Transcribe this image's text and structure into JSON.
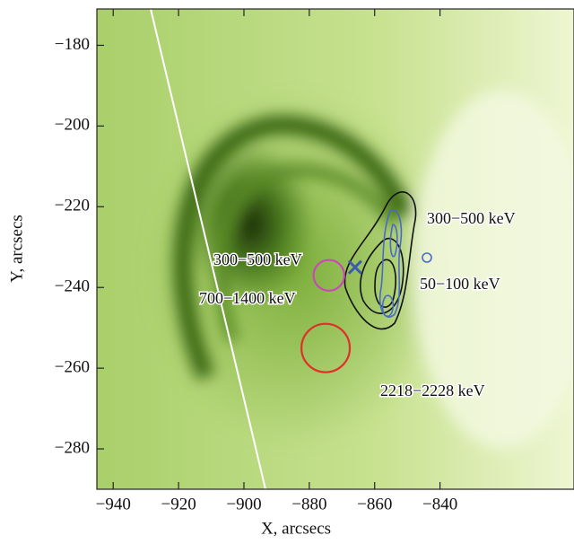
{
  "chart_data": {
    "type": "image",
    "xlabel": "X, arcsecs",
    "ylabel": "Y, arcsecs",
    "xlim": [
      -945,
      -799
    ],
    "ylim": [
      -290,
      -171
    ],
    "xticks": [
      {
        "value": -940,
        "label": "−940"
      },
      {
        "value": -920,
        "label": "−920"
      },
      {
        "value": -900,
        "label": "−900"
      },
      {
        "value": -880,
        "label": "−880"
      },
      {
        "value": -860,
        "label": "−860"
      },
      {
        "value": -840,
        "label": "−840"
      }
    ],
    "yticks": [
      {
        "value": -180,
        "label": "−180"
      },
      {
        "value": -200,
        "label": "−200"
      },
      {
        "value": -220,
        "label": "−220"
      },
      {
        "value": -240,
        "label": "−240"
      },
      {
        "value": -260,
        "label": "−260"
      },
      {
        "value": -280,
        "label": "−280"
      }
    ],
    "annotations": [
      "300−500 keV",
      "300−500 keV",
      "50−100 keV",
      "700−1400 keV",
      "2218−2228 keV"
    ],
    "circles": [
      {
        "x": -875,
        "y": -255,
        "r": 7.4,
        "color": "#e0302a"
      },
      {
        "x": -874,
        "y": -237,
        "r": 4.7,
        "color": "#c84ab8"
      }
    ],
    "cross": {
      "x": -866,
      "y": -235,
      "color": "#3d5bb0"
    }
  }
}
